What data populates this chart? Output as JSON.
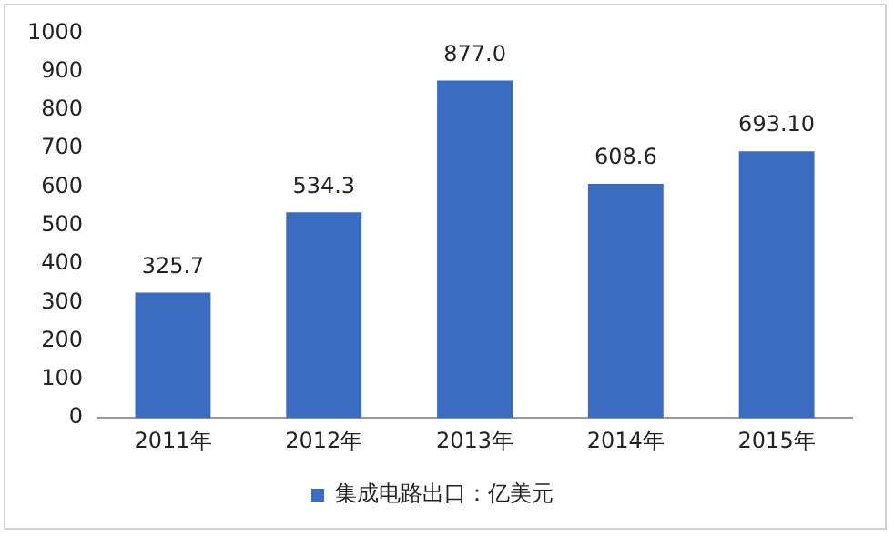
{
  "chart_data": {
    "type": "bar",
    "categories": [
      "2011年",
      "2012年",
      "2013年",
      "2014年",
      "2015年"
    ],
    "series": [
      {
        "name": "集成电路出口：亿美元",
        "color": "#3a6cc0",
        "values": [
          325.7,
          534.3,
          877.0,
          608.6,
          693.1
        ]
      }
    ],
    "value_labels": [
      "325.7",
      "534.3",
      "877.0",
      "608.6",
      "693.10"
    ],
    "ylim": [
      0,
      1000
    ],
    "yticks": [
      0,
      100,
      200,
      300,
      400,
      500,
      600,
      700,
      800,
      900,
      1000
    ],
    "grid": false,
    "legend": "bottom"
  }
}
